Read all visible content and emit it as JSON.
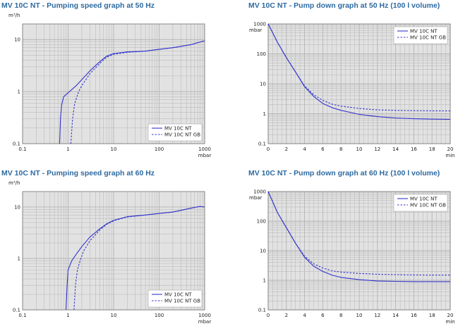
{
  "chart_data": [
    {
      "type": "line",
      "title": "MV 10C NT - Pumping speed graph at 50 Hz",
      "xlabel": "mbar",
      "ylabel": "m³/h",
      "xscale": "log",
      "yscale": "log",
      "xlim": [
        0.1,
        1000
      ],
      "ylim": [
        0.1,
        20
      ],
      "xticks": [
        "0.1",
        "1",
        "10",
        "100",
        "1000"
      ],
      "yticks": [
        "0.1",
        "1",
        "10"
      ],
      "grid": true,
      "legend": "bottom-right",
      "colors": {
        "series": "#3333cc",
        "plot_bg": "#e2e2e2",
        "grid": "#b4b4b4",
        "title": "#2d6aa0"
      },
      "series": [
        {
          "name": "MV 10C NT",
          "style": "solid",
          "x": [
            0.65,
            0.68,
            0.72,
            0.8,
            1,
            1.5,
            2,
            3,
            5,
            7,
            10,
            20,
            50,
            100,
            200,
            500,
            1000
          ],
          "y": [
            0.1,
            0.3,
            0.55,
            0.8,
            0.95,
            1.3,
            1.7,
            2.5,
            3.8,
            4.8,
            5.4,
            5.8,
            6.0,
            6.5,
            7.0,
            8.0,
            9.5
          ]
        },
        {
          "name": "MV 10C NT GB",
          "style": "dashed",
          "x": [
            1.15,
            1.25,
            1.4,
            1.7,
            2,
            3,
            5,
            7,
            10,
            20,
            50,
            100,
            200,
            500,
            1000
          ],
          "y": [
            0.1,
            0.3,
            0.6,
            1.0,
            1.3,
            2.2,
            3.5,
            4.6,
            5.2,
            5.7,
            6.0,
            6.5,
            7.0,
            8.0,
            9.5
          ]
        }
      ]
    },
    {
      "type": "line",
      "title": "MV 10C NT - Pump down graph at 50 Hz (100 l volume)",
      "xlabel": "min",
      "ylabel": "mbar",
      "yscale": "log",
      "xlim": [
        0,
        20
      ],
      "ylim": [
        0.1,
        1000
      ],
      "xticks": [
        "0",
        "2",
        "4",
        "6",
        "8",
        "10",
        "12",
        "14",
        "16",
        "18",
        "20"
      ],
      "yticks": [
        "0.1",
        "1",
        "10",
        "100",
        "1000"
      ],
      "grid": true,
      "legend": "top-right",
      "colors": {
        "series": "#3333cc",
        "plot_bg": "#e2e2e2",
        "grid": "#b4b4b4",
        "title": "#2d6aa0"
      },
      "series": [
        {
          "name": "MV 10C NT",
          "style": "solid",
          "x": [
            0,
            0.5,
            1,
            2,
            3,
            4,
            5,
            6,
            7,
            8,
            10,
            12,
            14,
            16,
            18,
            20
          ],
          "y": [
            1000,
            500,
            250,
            75,
            25,
            8,
            3.8,
            2.2,
            1.6,
            1.3,
            0.95,
            0.8,
            0.72,
            0.68,
            0.66,
            0.65
          ]
        },
        {
          "name": "MV 10C NT GB",
          "style": "dashed",
          "x": [
            0,
            0.5,
            1,
            2,
            3,
            4,
            5,
            6,
            7,
            8,
            10,
            12,
            14,
            16,
            18,
            20
          ],
          "y": [
            1000,
            500,
            250,
            75,
            25,
            8.5,
            4.3,
            2.8,
            2.1,
            1.8,
            1.5,
            1.35,
            1.3,
            1.27,
            1.25,
            1.24
          ]
        }
      ]
    },
    {
      "type": "line",
      "title": "MV 10C NT - Pumping speed graph at 60 Hz",
      "xlabel": "mbar",
      "ylabel": "m³/h",
      "xscale": "log",
      "yscale": "log",
      "xlim": [
        0.1,
        1000
      ],
      "ylim": [
        0.1,
        20
      ],
      "xticks": [
        "0.1",
        "1",
        "10",
        "100",
        "1000"
      ],
      "yticks": [
        "0.1",
        "1",
        "10"
      ],
      "grid": true,
      "legend": "bottom-right",
      "colors": {
        "series": "#3333cc",
        "plot_bg": "#e2e2e2",
        "grid": "#b4b4b4",
        "title": "#2d6aa0"
      },
      "series": [
        {
          "name": "MV 10C NT",
          "style": "solid",
          "x": [
            0.9,
            0.95,
            1,
            1.2,
            1.5,
            2,
            3,
            5,
            7,
            10,
            20,
            50,
            100,
            200,
            500,
            800,
            1000
          ],
          "y": [
            0.1,
            0.3,
            0.6,
            0.9,
            1.2,
            1.7,
            2.6,
            3.8,
            4.7,
            5.5,
            6.5,
            7.0,
            7.5,
            8.0,
            9.5,
            10.3,
            10.0
          ]
        },
        {
          "name": "MV 10C NT GB",
          "style": "dashed",
          "x": [
            1.35,
            1.45,
            1.6,
            1.9,
            2.2,
            3,
            5,
            7,
            10,
            20,
            50,
            100,
            200,
            500,
            800,
            1000
          ],
          "y": [
            0.1,
            0.3,
            0.6,
            1.0,
            1.4,
            2.2,
            3.6,
            4.6,
            5.4,
            6.4,
            7.0,
            7.5,
            8.0,
            9.5,
            10.3,
            10.0
          ]
        }
      ]
    },
    {
      "type": "line",
      "title": "MV 10C NT - Pump down graph at 60 Hz (100 l volume)",
      "xlabel": "min",
      "ylabel": "mbar",
      "yscale": "log",
      "xlim": [
        0,
        20
      ],
      "ylim": [
        0.1,
        1000
      ],
      "xticks": [
        "0",
        "2",
        "4",
        "6",
        "8",
        "10",
        "12",
        "14",
        "16",
        "18",
        "20"
      ],
      "yticks": [
        "0.1",
        "1",
        "10",
        "100",
        "1000"
      ],
      "grid": true,
      "legend": "top-right",
      "colors": {
        "series": "#3333cc",
        "plot_bg": "#e2e2e2",
        "grid": "#b4b4b4",
        "title": "#2d6aa0"
      },
      "series": [
        {
          "name": "MV 10C NT",
          "style": "solid",
          "x": [
            0,
            0.5,
            1,
            2,
            3,
            4,
            5,
            6,
            7,
            8,
            10,
            12,
            14,
            16,
            18,
            20
          ],
          "y": [
            1000,
            450,
            200,
            60,
            18,
            6,
            3.0,
            2.0,
            1.5,
            1.25,
            1.05,
            0.95,
            0.92,
            0.9,
            0.9,
            0.9
          ]
        },
        {
          "name": "MV 10C NT GB",
          "style": "dashed",
          "x": [
            0,
            0.5,
            1,
            2,
            3,
            4,
            5,
            6,
            7,
            8,
            10,
            12,
            14,
            16,
            18,
            20
          ],
          "y": [
            1000,
            450,
            200,
            60,
            18,
            6.5,
            3.6,
            2.6,
            2.1,
            1.9,
            1.7,
            1.6,
            1.55,
            1.52,
            1.5,
            1.5
          ]
        }
      ]
    }
  ]
}
